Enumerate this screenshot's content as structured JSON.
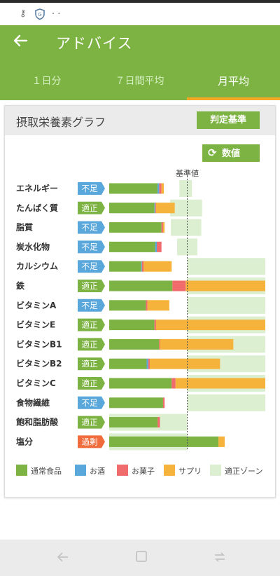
{
  "status_bar": {
    "icons": [
      "key-icon",
      "shield-icon",
      "dots-icon"
    ],
    "dots": "· ·"
  },
  "header": {
    "title": "アドバイス",
    "back_icon": "arrow-left-icon"
  },
  "tabs": [
    {
      "label": "１日分",
      "active": false
    },
    {
      "label": "７日間平均",
      "active": false
    },
    {
      "label": "月平均",
      "active": true
    }
  ],
  "card": {
    "title": "摂取栄養素グラフ",
    "judge_button": "判定基準",
    "number_button": "数値",
    "reference_label": "基準値"
  },
  "colors": {
    "normal_food": "#7cb342",
    "alcohol": "#5aa7dc",
    "snack": "#f06c6c",
    "supplement": "#f5b33b",
    "zone": "#dcefd0",
    "badge_low": "#5aa7dc",
    "badge_ok": "#7cb342",
    "badge_high": "#f06c3c"
  },
  "legend": [
    {
      "label": "通常食品",
      "key": "normal_food"
    },
    {
      "label": "お酒",
      "key": "alcohol"
    },
    {
      "label": "お菓子",
      "key": "snack"
    },
    {
      "label": "サプリ",
      "key": "supplement"
    },
    {
      "label": "適正ゾーン",
      "key": "zone"
    }
  ],
  "chart_data": {
    "type": "bar",
    "stacked": true,
    "reference_line_label": "基準値",
    "reference_value": 100,
    "unit": "% of reference",
    "xlim": [
      0,
      200
    ],
    "series_keys": [
      "normal_food",
      "alcohol",
      "snack",
      "supplement"
    ],
    "rows": [
      {
        "name": "エネルギー",
        "status": "不足",
        "status_key": "low",
        "normal_food": 62,
        "alcohol": 2,
        "snack": 3,
        "supplement": 3,
        "zone": [
          90,
          106
        ]
      },
      {
        "name": "たんぱく質",
        "status": "適正",
        "status_key": "ok",
        "normal_food": 58,
        "alcohol": 1,
        "snack": 1,
        "supplement": 24,
        "zone": [
          78,
          119
        ]
      },
      {
        "name": "脂質",
        "status": "不足",
        "status_key": "low",
        "normal_food": 67,
        "alcohol": 0,
        "snack": 2,
        "supplement": 2,
        "zone": [
          79,
          118
        ]
      },
      {
        "name": "炭水化物",
        "status": "不足",
        "status_key": "low",
        "normal_food": 59,
        "alcohol": 2,
        "snack": 6,
        "supplement": 0,
        "zone": [
          87,
          113
        ]
      },
      {
        "name": "カルシウム",
        "status": "不足",
        "status_key": "low",
        "normal_food": 41,
        "alcohol": 1,
        "snack": 2,
        "supplement": 36,
        "zone": [
          100,
          200
        ]
      },
      {
        "name": "鉄",
        "status": "適正",
        "status_key": "ok",
        "normal_food": 81,
        "alcohol": 0,
        "snack": 17,
        "supplement": 102,
        "zone": [
          100,
          200
        ]
      },
      {
        "name": "ビタミンA",
        "status": "不足",
        "status_key": "low",
        "normal_food": 47,
        "alcohol": 0,
        "snack": 2,
        "supplement": 28,
        "zone": [
          100,
          200
        ]
      },
      {
        "name": "ビタミンE",
        "status": "適正",
        "status_key": "ok",
        "normal_food": 58,
        "alcohol": 0,
        "snack": 2,
        "supplement": 140,
        "zone": [
          100,
          200
        ]
      },
      {
        "name": "ビタミンB1",
        "status": "適正",
        "status_key": "ok",
        "normal_food": 64,
        "alcohol": 0,
        "snack": 1,
        "supplement": 94,
        "zone": [
          100,
          200
        ]
      },
      {
        "name": "ビタミンB2",
        "status": "適正",
        "status_key": "ok",
        "normal_food": 48,
        "alcohol": 2,
        "snack": 2,
        "supplement": 90,
        "zone": [
          100,
          200
        ]
      },
      {
        "name": "ビタミンC",
        "status": "適正",
        "status_key": "ok",
        "normal_food": 80,
        "alcohol": 0,
        "snack": 5,
        "supplement": 115,
        "zone": [
          100,
          200
        ]
      },
      {
        "name": "食物繊維",
        "status": "不足",
        "status_key": "low",
        "normal_food": 69,
        "alcohol": 0,
        "snack": 2,
        "supplement": 0,
        "zone": [
          100,
          200
        ]
      },
      {
        "name": "飽和脂肪酸",
        "status": "適正",
        "status_key": "ok",
        "normal_food": 62,
        "alcohol": 0,
        "snack": 3,
        "supplement": 0,
        "zone": [
          0,
          100
        ]
      },
      {
        "name": "塩分",
        "status": "過剰",
        "status_key": "high",
        "normal_food": 140,
        "alcohol": 0,
        "snack": 0,
        "supplement": 8,
        "zone": [
          0,
          100
        ]
      }
    ]
  },
  "nav": {
    "icons": [
      "back-nav-icon",
      "home-nav-icon",
      "recents-nav-icon"
    ]
  }
}
